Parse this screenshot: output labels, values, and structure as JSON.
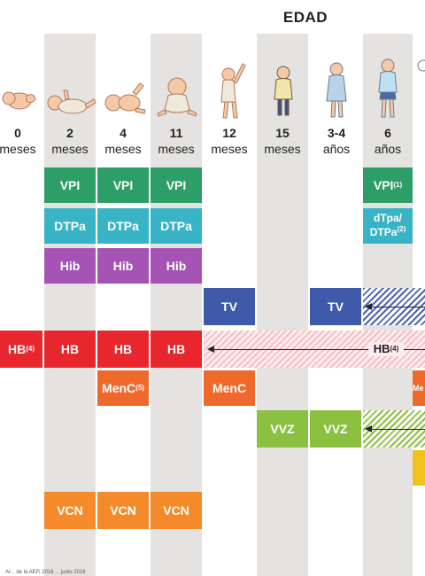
{
  "header": {
    "title": "EDAD"
  },
  "ages": [
    {
      "num": "0",
      "unit": "meses",
      "figure": "newborn-figure"
    },
    {
      "num": "2",
      "unit": "meses",
      "figure": "infant-lying-figure"
    },
    {
      "num": "4",
      "unit": "meses",
      "figure": "infant-rolling-figure"
    },
    {
      "num": "11",
      "unit": "meses",
      "figure": "infant-sitting-figure"
    },
    {
      "num": "12",
      "unit": "meses",
      "figure": "toddler-standing-figure"
    },
    {
      "num": "15",
      "unit": "meses",
      "figure": "toddler-walking-figure"
    },
    {
      "num": "3-4",
      "unit": "años",
      "figure": "child-figure"
    },
    {
      "num": "6",
      "unit": "años",
      "figure": "child-older-figure"
    }
  ],
  "vaccines": {
    "vpi": "VPI",
    "vpi_note": "(1)",
    "dtpa": "DTPa",
    "dtpa_6_line1": "dTpa/",
    "dtpa_6_line2": "DTPa",
    "dtpa_6_note": "(2)",
    "hib": "Hib",
    "tv": "TV",
    "hb": "HB",
    "hb_note": "(4)",
    "menc": "MenC",
    "menc_note": "(5)",
    "vvz": "VVZ",
    "vcn": "VCN",
    "men_cut": "Me"
  },
  "colors": {
    "vpi": "#2e9e68",
    "dtpa": "#38b4c6",
    "hib": "#a553b4",
    "tv": "#3f5aa8",
    "hb": "#e8262e",
    "menc": "#f0692c",
    "vvz": "#8cc040",
    "vcn": "#f48a2a",
    "yellow": "#f2c21c",
    "column_bg": "#e4e3e1"
  },
  "footnote": "Ar... de la AEP, 2016 ... junio 2016"
}
